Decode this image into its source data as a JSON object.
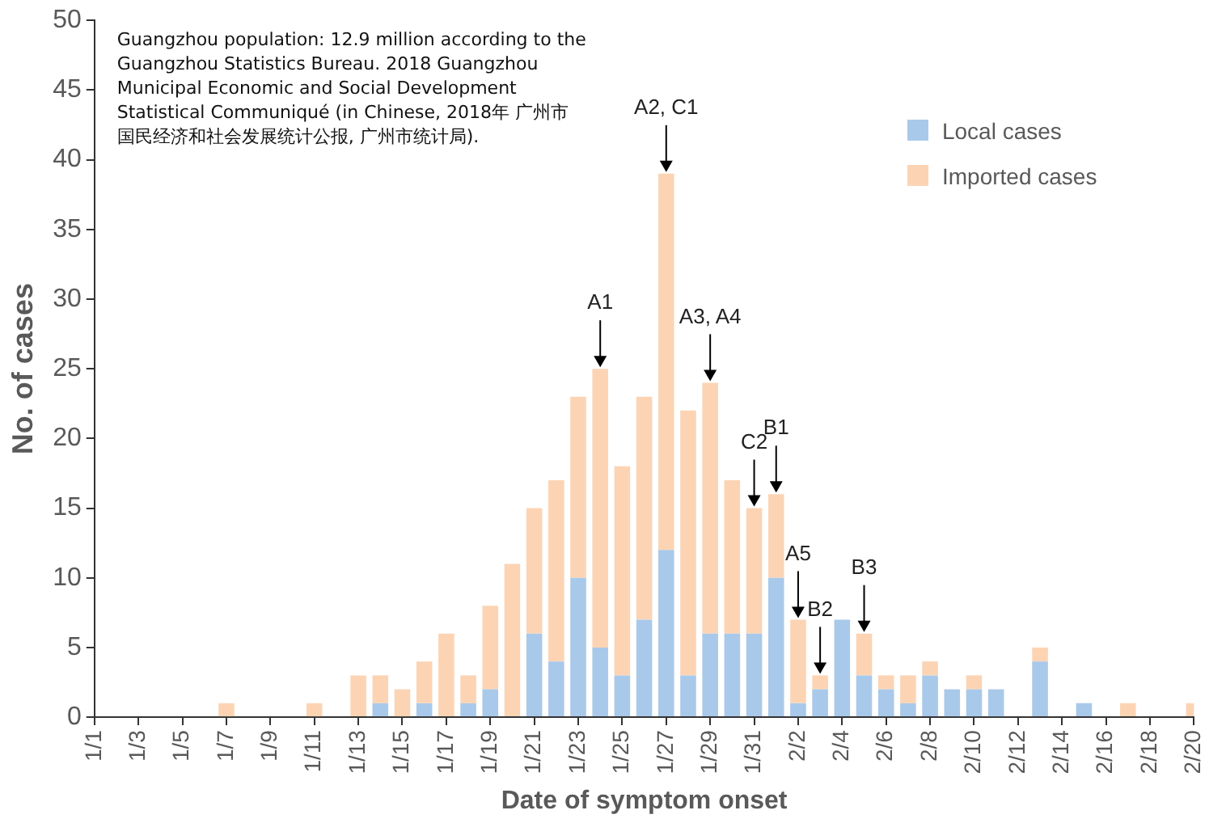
{
  "chart_data": {
    "type": "bar",
    "stacked": true,
    "xlabel": "Date of symptom onset",
    "ylabel": "No. of cases",
    "x": [
      "--01-01",
      "--01-02",
      "--01-03",
      "--01-04",
      "--01-05",
      "--01-06",
      "--01-07",
      "--01-08",
      "--01-09",
      "--01-10",
      "--01-11",
      "--01-12",
      "--01-13",
      "--01-14",
      "--01-15",
      "--01-16",
      "--01-17",
      "--01-18",
      "--01-19",
      "--01-20",
      "--01-21",
      "--01-22",
      "--01-23",
      "--01-24",
      "--01-25",
      "--01-26",
      "--01-27",
      "--01-28",
      "--01-29",
      "--01-30",
      "--01-31",
      "--02-01",
      "--02-02",
      "--02-03",
      "--02-04",
      "--02-05",
      "--02-06",
      "--02-07",
      "--02-08",
      "--02-09",
      "--02-10",
      "--02-11",
      "--02-12",
      "--02-13",
      "--02-14",
      "--02-15",
      "--02-16",
      "--02-17",
      "--02-18",
      "--02-19",
      "--02-20"
    ],
    "series": [
      {
        "name": "Local cases",
        "color": "#a9c9ea",
        "values": [
          0,
          0,
          0,
          0,
          0,
          0,
          0,
          0,
          0,
          0,
          0,
          0,
          0,
          1,
          0,
          1,
          0,
          1,
          2,
          0,
          6,
          4,
          10,
          5,
          3,
          7,
          12,
          3,
          6,
          6,
          6,
          10,
          1,
          2,
          7,
          3,
          2,
          1,
          3,
          2,
          2,
          2,
          0,
          4,
          0,
          1,
          0,
          0,
          0,
          0,
          0
        ]
      },
      {
        "name": "Imported cases",
        "color": "#fcd4b4",
        "values": [
          0,
          0,
          0,
          0,
          0,
          0,
          1,
          0,
          0,
          0,
          1,
          0,
          3,
          2,
          2,
          3,
          6,
          2,
          6,
          11,
          9,
          13,
          13,
          20,
          15,
          16,
          27,
          19,
          18,
          11,
          9,
          6,
          6,
          1,
          0,
          3,
          1,
          2,
          1,
          0,
          1,
          0,
          0,
          1,
          0,
          0,
          0,
          1,
          0,
          0,
          1
        ]
      }
    ],
    "xlim": [
      "--01-01",
      "--02-20"
    ],
    "xticks": [
      {
        "value": "--01-01",
        "label": "1/1"
      },
      {
        "value": "--01-03",
        "label": "1/3"
      },
      {
        "value": "--01-05",
        "label": "1/5"
      },
      {
        "value": "--01-07",
        "label": "1/7"
      },
      {
        "value": "--01-09",
        "label": "1/9"
      },
      {
        "value": "--01-11",
        "label": "1/11"
      },
      {
        "value": "--01-13",
        "label": "1/13"
      },
      {
        "value": "--01-15",
        "label": "1/15"
      },
      {
        "value": "--01-17",
        "label": "1/17"
      },
      {
        "value": "--01-19",
        "label": "1/19"
      },
      {
        "value": "--01-21",
        "label": "1/21"
      },
      {
        "value": "--01-23",
        "label": "1/23"
      },
      {
        "value": "--01-25",
        "label": "1/25"
      },
      {
        "value": "--01-27",
        "label": "1/27"
      },
      {
        "value": "--01-29",
        "label": "1/29"
      },
      {
        "value": "--01-31",
        "label": "1/31"
      },
      {
        "value": "--02-02",
        "label": "2/2"
      },
      {
        "value": "--02-04",
        "label": "2/4"
      },
      {
        "value": "--02-06",
        "label": "2/6"
      },
      {
        "value": "--02-08",
        "label": "2/8"
      },
      {
        "value": "--02-10",
        "label": "2/10"
      },
      {
        "value": "--02-12",
        "label": "2/12"
      },
      {
        "value": "--02-14",
        "label": "2/14"
      },
      {
        "value": "--02-16",
        "label": "2/16"
      },
      {
        "value": "--02-18",
        "label": "2/18"
      },
      {
        "value": "--02-20",
        "label": "2/20"
      }
    ],
    "ylim": [
      0,
      50
    ],
    "yticks": [
      0,
      5,
      10,
      15,
      20,
      25,
      30,
      35,
      40,
      45,
      50
    ],
    "grid": false,
    "legend": "top right",
    "annotations": [
      "Guangzhou population: 12.9 million according to the Guangzhou Statistics Bureau. 2018 Guangzhou Municipal Economic and Social Development Statistical Communiqué (in Chinese, 2018年 广州市国民经济和社会发展统计公报, 广州市统计局).",
      {
        "text": "A1",
        "x": "--01-24",
        "y": 25
      },
      {
        "text": "A2, C1",
        "x": "--01-27",
        "y": 39
      },
      {
        "text": "A3, A4",
        "x": "--01-29",
        "y": 24
      },
      {
        "text": "C2",
        "x": "--01-31",
        "y": 15
      },
      {
        "text": "B1",
        "x": "--02-01",
        "y": 16
      },
      {
        "text": "A5",
        "x": "--02-02",
        "y": 7
      },
      {
        "text": "B2",
        "x": "--02-03",
        "y": 3
      },
      {
        "text": "B3",
        "x": "--02-05",
        "y": 6
      }
    ]
  }
}
